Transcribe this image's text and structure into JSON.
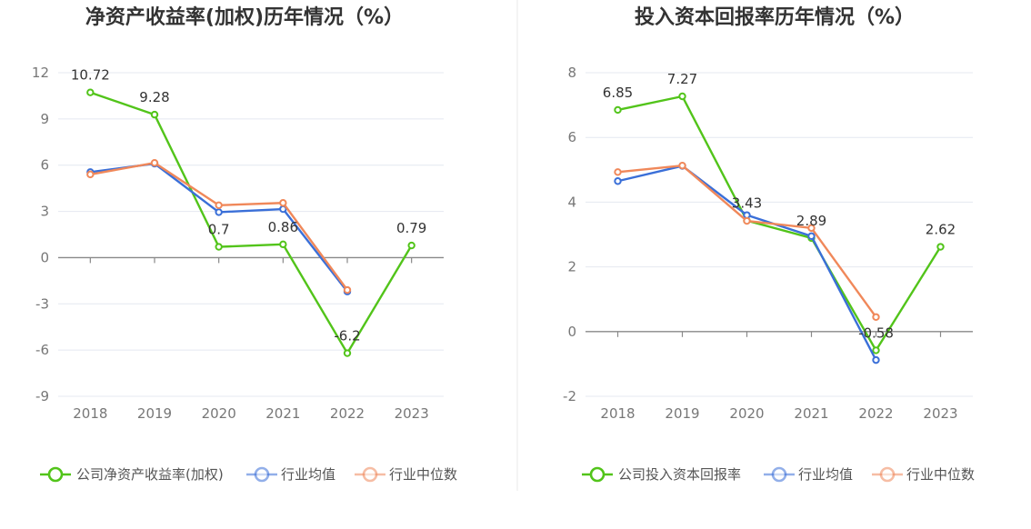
{
  "chart_data": [
    {
      "type": "line",
      "title": "净资产收益率(加权)历年情况（%）",
      "categories": [
        "2018",
        "2019",
        "2020",
        "2021",
        "2022",
        "2023"
      ],
      "ylim": [
        -9,
        12
      ],
      "yticks": [
        12,
        9,
        6,
        3,
        0,
        -3,
        -6,
        -9
      ],
      "grid": true,
      "legend_position": "bottom",
      "series": [
        {
          "name": "公司净资产收益率(加权)",
          "color": "#52c41a",
          "values": [
            10.72,
            9.28,
            0.7,
            0.86,
            -6.2,
            0.79
          ],
          "labels": [
            "10.72",
            "9.28",
            "0.7",
            "0.86",
            "-6.2",
            "0.79"
          ]
        },
        {
          "name": "行业均值",
          "color": "#3a6fd8",
          "values": [
            5.55,
            6.1,
            2.95,
            3.15,
            -2.2,
            null
          ]
        },
        {
          "name": "行业中位数",
          "color": "#f0885a",
          "values": [
            5.4,
            6.15,
            3.4,
            3.55,
            -2.1,
            null
          ]
        }
      ]
    },
    {
      "type": "line",
      "title": "投入资本回报率历年情况（%）",
      "categories": [
        "2018",
        "2019",
        "2020",
        "2021",
        "2022",
        "2023"
      ],
      "ylim": [
        -2,
        8
      ],
      "yticks": [
        8,
        6,
        4,
        2,
        0,
        -2
      ],
      "grid": true,
      "legend_position": "bottom",
      "series": [
        {
          "name": "公司投入资本回报率",
          "color": "#52c41a",
          "values": [
            6.85,
            7.27,
            3.43,
            2.89,
            -0.58,
            2.62
          ],
          "labels": [
            "6.85",
            "7.27",
            "3.43",
            "2.89",
            "-0.58",
            "2.62"
          ]
        },
        {
          "name": "行业均值",
          "color": "#3a6fd8",
          "values": [
            4.65,
            5.12,
            3.6,
            2.95,
            -0.88,
            null
          ]
        },
        {
          "name": "行业中位数",
          "color": "#f0885a",
          "values": [
            4.93,
            5.13,
            3.42,
            3.2,
            0.45,
            null
          ]
        }
      ]
    }
  ]
}
